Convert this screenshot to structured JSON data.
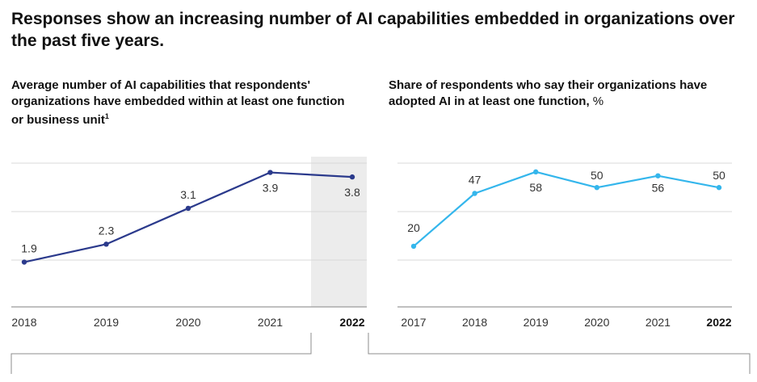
{
  "headline": "Responses show an increasing number of AI capabilities embedded in organizations over the past five years.",
  "chart_data": [
    {
      "type": "line",
      "title": "Average number of AI capabilities that respondents' organizations have embedded within at least one function or business unit",
      "footnote_marker": "1",
      "x": [
        "2018",
        "2019",
        "2020",
        "2021",
        "2022"
      ],
      "values": [
        1.9,
        2.3,
        3.1,
        3.9,
        3.8
      ],
      "data_labels": [
        "1.9",
        "2.3",
        "3.1",
        "3.9",
        "3.8"
      ],
      "highlight_category": "2022",
      "ylim": [
        0.9,
        4
      ],
      "grid": true,
      "color": "#2b3a8c",
      "highlight_color": "#ececec"
    },
    {
      "type": "line",
      "title": "Share of respondents who say their organizations have adopted AI in at least one function,",
      "unit": "%",
      "x": [
        "2017",
        "2018",
        "2019",
        "2020",
        "2021",
        "2022"
      ],
      "values": [
        20,
        47,
        58,
        50,
        56,
        50
      ],
      "data_labels": [
        "20",
        "47",
        "58",
        "50",
        "56",
        "50"
      ],
      "highlight_category": "2022",
      "ylim": [
        -11,
        60
      ],
      "grid": true,
      "color": "#34b6ec"
    }
  ],
  "colors": {
    "grid": "#d9d9d9",
    "axis": "#9a9a9a",
    "bracket": "#8c8c8c"
  }
}
